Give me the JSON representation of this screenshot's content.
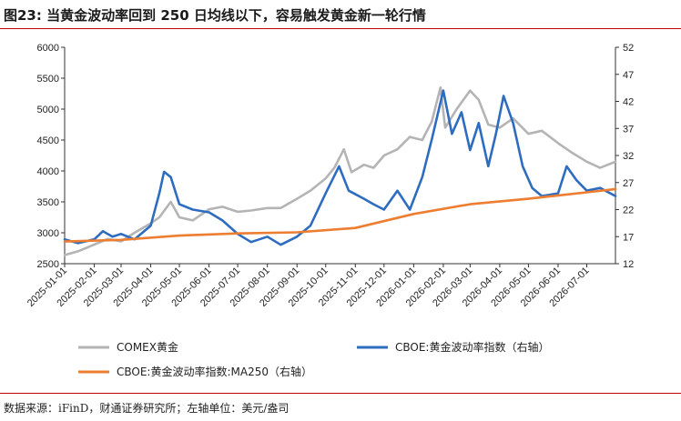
{
  "title": "图23: 当黄金波动率回到 250 日均线以下，容易触发黄金新一轮行情",
  "source": "数据来源：iFinD，财通证券研究所；左轴单位：美元/盎司",
  "colors": {
    "gold": "#b4b4b4",
    "vol": "#2e6cc0",
    "ma": "#ed7d31",
    "rule": "#c00000"
  },
  "chart_data": {
    "type": "line",
    "x_range": [
      "2025-01-01",
      "2026-07-31"
    ],
    "x_ticks": [
      "2025-01-01",
      "2025-02-01",
      "2025-03-01",
      "2025-04-01",
      "2025-05-01",
      "2025-06-01",
      "2025-07-01",
      "2025-08-01",
      "2025-09-01",
      "2025-10-01",
      "2025-11-01",
      "2025-12-01",
      "2026-01-01",
      "2026-02-01",
      "2026-03-01",
      "2026-04-01",
      "2026-05-01",
      "2026-06-01",
      "2026-07-01"
    ],
    "y_left": {
      "range": [
        2500,
        6000
      ],
      "ticks": [
        "2500",
        "3000",
        "3500",
        "4000",
        "4500",
        "5000",
        "5500",
        "6000"
      ]
    },
    "y_right": {
      "range": [
        12,
        52
      ],
      "ticks": [
        "12",
        "17",
        "22",
        "27",
        "32",
        "37",
        "42",
        "47",
        "52"
      ]
    },
    "legend": [
      "COMEX黄金",
      "CBOE:黄金波动率指数（右轴）",
      "CBOE:黄金波动率指数:MA250（右轴）"
    ],
    "series": [
      {
        "name": "COMEX黄金",
        "axis": "left",
        "points": [
          [
            "2025-01-01",
            2640
          ],
          [
            "2025-01-15",
            2700
          ],
          [
            "2025-02-01",
            2810
          ],
          [
            "2025-02-15",
            2900
          ],
          [
            "2025-03-01",
            2860
          ],
          [
            "2025-03-15",
            3000
          ],
          [
            "2025-04-01",
            3150
          ],
          [
            "2025-04-10",
            3250
          ],
          [
            "2025-04-22",
            3500
          ],
          [
            "2025-05-01",
            3250
          ],
          [
            "2025-05-15",
            3200
          ],
          [
            "2025-06-01",
            3380
          ],
          [
            "2025-06-15",
            3420
          ],
          [
            "2025-07-01",
            3340
          ],
          [
            "2025-07-15",
            3360
          ],
          [
            "2025-08-01",
            3400
          ],
          [
            "2025-08-15",
            3400
          ],
          [
            "2025-09-01",
            3550
          ],
          [
            "2025-09-15",
            3680
          ],
          [
            "2025-10-01",
            3880
          ],
          [
            "2025-10-10",
            4050
          ],
          [
            "2025-10-20",
            4350
          ],
          [
            "2025-10-28",
            3980
          ],
          [
            "2025-11-10",
            4100
          ],
          [
            "2025-11-20",
            4050
          ],
          [
            "2025-12-01",
            4250
          ],
          [
            "2025-12-15",
            4350
          ],
          [
            "2025-12-28",
            4550
          ],
          [
            "2026-01-10",
            4500
          ],
          [
            "2026-01-20",
            4800
          ],
          [
            "2026-01-29",
            5350
          ],
          [
            "2026-02-03",
            4700
          ],
          [
            "2026-02-15",
            5000
          ],
          [
            "2026-03-01",
            5300
          ],
          [
            "2026-03-10",
            5150
          ],
          [
            "2026-03-20",
            4750
          ],
          [
            "2026-04-01",
            4700
          ],
          [
            "2026-04-15",
            4850
          ],
          [
            "2026-05-01",
            4600
          ],
          [
            "2026-05-15",
            4650
          ],
          [
            "2026-06-01",
            4450
          ],
          [
            "2026-06-15",
            4300
          ],
          [
            "2026-07-01",
            4150
          ],
          [
            "2026-07-15",
            4050
          ],
          [
            "2026-07-31",
            4150
          ]
        ]
      },
      {
        "name": "CBOE:黄金波动率指数（右轴）",
        "axis": "right",
        "points": [
          [
            "2025-01-01",
            16.5
          ],
          [
            "2025-01-15",
            15.8
          ],
          [
            "2025-02-01",
            16.5
          ],
          [
            "2025-02-10",
            18.0
          ],
          [
            "2025-02-20",
            17.0
          ],
          [
            "2025-03-01",
            17.5
          ],
          [
            "2025-03-15",
            16.5
          ],
          [
            "2025-04-01",
            19.0
          ],
          [
            "2025-04-10",
            25.0
          ],
          [
            "2025-04-15",
            29.0
          ],
          [
            "2025-04-22",
            28.0
          ],
          [
            "2025-05-01",
            23.0
          ],
          [
            "2025-05-15",
            22.0
          ],
          [
            "2025-06-01",
            21.5
          ],
          [
            "2025-06-15",
            20.0
          ],
          [
            "2025-07-01",
            17.5
          ],
          [
            "2025-07-15",
            16.0
          ],
          [
            "2025-08-01",
            17.0
          ],
          [
            "2025-08-15",
            15.5
          ],
          [
            "2025-09-01",
            17.0
          ],
          [
            "2025-09-15",
            19.0
          ],
          [
            "2025-10-01",
            25.0
          ],
          [
            "2025-10-15",
            30.0
          ],
          [
            "2025-10-25",
            25.5
          ],
          [
            "2025-11-10",
            24.0
          ],
          [
            "2025-11-20",
            23.0
          ],
          [
            "2025-12-01",
            22.0
          ],
          [
            "2025-12-15",
            25.5
          ],
          [
            "2025-12-28",
            22.0
          ],
          [
            "2026-01-10",
            28.0
          ],
          [
            "2026-01-20",
            35.0
          ],
          [
            "2026-02-01",
            44.0
          ],
          [
            "2026-02-10",
            36.0
          ],
          [
            "2026-02-20",
            40.0
          ],
          [
            "2026-03-01",
            33.0
          ],
          [
            "2026-03-10",
            38.0
          ],
          [
            "2026-03-20",
            30.0
          ],
          [
            "2026-03-28",
            36.0
          ],
          [
            "2026-04-05",
            43.0
          ],
          [
            "2026-04-15",
            38.0
          ],
          [
            "2026-04-25",
            30.0
          ],
          [
            "2026-05-05",
            26.0
          ],
          [
            "2026-05-15",
            24.5
          ],
          [
            "2026-06-01",
            25.0
          ],
          [
            "2026-06-10",
            30.0
          ],
          [
            "2026-06-20",
            27.5
          ],
          [
            "2026-07-01",
            25.5
          ],
          [
            "2026-07-15",
            26.0
          ],
          [
            "2026-07-31",
            24.5
          ]
        ]
      },
      {
        "name": "CBOE:黄金波动率指数:MA250（右轴）",
        "axis": "right",
        "points": [
          [
            "2025-01-01",
            16.1
          ],
          [
            "2025-03-01",
            16.4
          ],
          [
            "2025-05-01",
            17.2
          ],
          [
            "2025-07-01",
            17.6
          ],
          [
            "2025-09-01",
            17.8
          ],
          [
            "2025-11-01",
            18.6
          ],
          [
            "2026-01-01",
            21.2
          ],
          [
            "2026-03-01",
            23.0
          ],
          [
            "2026-05-01",
            24.0
          ],
          [
            "2026-07-01",
            25.2
          ],
          [
            "2026-07-31",
            25.8
          ]
        ]
      }
    ]
  }
}
